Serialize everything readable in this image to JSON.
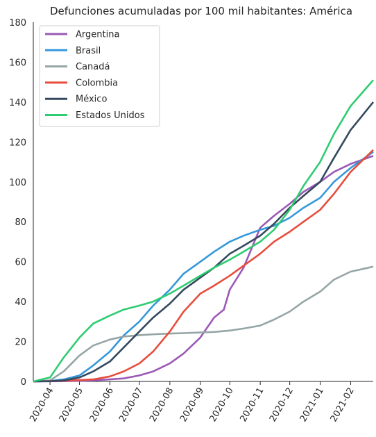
{
  "chart_data": {
    "type": "line",
    "title": "Defunciones acumuladas por 100 mil habitantes: América",
    "xlabel": "",
    "ylabel": "",
    "x_ticks": [
      "2020-04",
      "2020-05",
      "2020-06",
      "2020-07",
      "2020-08",
      "2020-09",
      "2020-10",
      "2020-11",
      "2020-12",
      "2021-01",
      "2021-02"
    ],
    "xlim": [
      "2020-03-15",
      "2021-02-24"
    ],
    "ylim": [
      0,
      180
    ],
    "y_ticks": [
      0,
      20,
      40,
      60,
      80,
      100,
      120,
      140,
      160,
      180
    ],
    "grid": false,
    "legend_position": "top-left",
    "series": [
      {
        "name": "Argentina",
        "color": "#9b59b6",
        "x": [
          "2020-03-15",
          "2020-04-15",
          "2020-05-15",
          "2020-06-15",
          "2020-07-01",
          "2020-07-15",
          "2020-08-01",
          "2020-08-15",
          "2020-09-01",
          "2020-09-15",
          "2020-09-25",
          "2020-10-01",
          "2020-10-15",
          "2020-11-01",
          "2020-11-15",
          "2020-12-01",
          "2020-12-15",
          "2021-01-01",
          "2021-01-15",
          "2021-02-01",
          "2021-02-24"
        ],
        "y": [
          0,
          0.1,
          0.5,
          1.5,
          3,
          5,
          9,
          14,
          22,
          32,
          36,
          46,
          57,
          77,
          83,
          89,
          95,
          100,
          105,
          109,
          113
        ]
      },
      {
        "name": "Brasil",
        "color": "#3498db",
        "x": [
          "2020-03-15",
          "2020-04-01",
          "2020-04-15",
          "2020-05-01",
          "2020-05-15",
          "2020-06-01",
          "2020-06-15",
          "2020-07-01",
          "2020-07-15",
          "2020-08-01",
          "2020-08-15",
          "2020-09-01",
          "2020-09-15",
          "2020-10-01",
          "2020-10-15",
          "2020-11-01",
          "2020-11-15",
          "2020-12-01",
          "2020-12-15",
          "2021-01-01",
          "2021-01-15",
          "2021-02-01",
          "2021-02-24"
        ],
        "y": [
          0,
          0.2,
          1,
          3,
          8,
          15,
          23,
          30,
          38,
          46,
          54,
          60,
          65,
          70,
          73,
          76,
          78,
          82,
          87,
          92,
          100,
          107,
          115
        ]
      },
      {
        "name": "Canadá",
        "color": "#95a5a6",
        "x": [
          "2020-03-15",
          "2020-04-01",
          "2020-04-15",
          "2020-05-01",
          "2020-05-15",
          "2020-06-01",
          "2020-06-15",
          "2020-07-01",
          "2020-07-15",
          "2020-08-01",
          "2020-08-15",
          "2020-09-01",
          "2020-09-15",
          "2020-10-01",
          "2020-10-15",
          "2020-11-01",
          "2020-11-15",
          "2020-12-01",
          "2020-12-15",
          "2021-01-01",
          "2021-01-15",
          "2021-02-01",
          "2021-02-24"
        ],
        "y": [
          0,
          0.5,
          5,
          13,
          18,
          21,
          22.5,
          23.2,
          23.6,
          24,
          24.2,
          24.5,
          24.8,
          25.5,
          26.5,
          28,
          31,
          35,
          40,
          45,
          51,
          55,
          57.5
        ]
      },
      {
        "name": "Colombia",
        "color": "#e74c3c",
        "x": [
          "2020-03-15",
          "2020-04-15",
          "2020-05-15",
          "2020-06-01",
          "2020-06-15",
          "2020-07-01",
          "2020-07-15",
          "2020-08-01",
          "2020-08-15",
          "2020-09-01",
          "2020-09-15",
          "2020-10-01",
          "2020-10-15",
          "2020-11-01",
          "2020-11-15",
          "2020-12-01",
          "2020-12-15",
          "2021-01-01",
          "2021-01-15",
          "2021-02-01",
          "2021-02-24"
        ],
        "y": [
          0,
          0.3,
          1,
          2.5,
          5,
          9,
          15,
          25,
          35,
          44,
          48,
          53,
          58,
          64,
          70,
          75,
          80,
          86,
          94,
          105,
          116
        ]
      },
      {
        "name": "México",
        "color": "#34495e",
        "x": [
          "2020-03-15",
          "2020-04-01",
          "2020-04-15",
          "2020-05-01",
          "2020-05-15",
          "2020-06-01",
          "2020-06-15",
          "2020-07-01",
          "2020-07-15",
          "2020-08-01",
          "2020-08-15",
          "2020-09-01",
          "2020-09-15",
          "2020-10-01",
          "2020-10-15",
          "2020-11-01",
          "2020-11-15",
          "2020-12-01",
          "2020-12-15",
          "2021-01-01",
          "2021-01-15",
          "2021-02-01",
          "2021-02-24"
        ],
        "y": [
          0,
          0.1,
          0.5,
          2,
          5,
          10,
          17,
          25,
          32,
          39,
          46,
          52,
          57,
          64,
          68,
          73,
          79,
          87,
          93,
          100,
          112,
          126,
          140
        ]
      },
      {
        "name": "Estados Unidos",
        "color": "#2ecc71",
        "x": [
          "2020-03-15",
          "2020-04-01",
          "2020-04-15",
          "2020-05-01",
          "2020-05-15",
          "2020-06-01",
          "2020-06-15",
          "2020-07-01",
          "2020-07-15",
          "2020-08-01",
          "2020-08-15",
          "2020-09-01",
          "2020-09-15",
          "2020-10-01",
          "2020-10-15",
          "2020-11-01",
          "2020-11-15",
          "2020-12-01",
          "2020-12-15",
          "2021-01-01",
          "2021-01-15",
          "2021-02-01",
          "2021-02-24"
        ],
        "y": [
          0,
          2,
          12,
          22,
          29,
          33,
          36,
          38,
          40,
          44,
          48,
          53,
          57,
          61,
          65,
          70,
          76,
          86,
          98,
          110,
          124,
          138,
          151
        ]
      }
    ]
  }
}
